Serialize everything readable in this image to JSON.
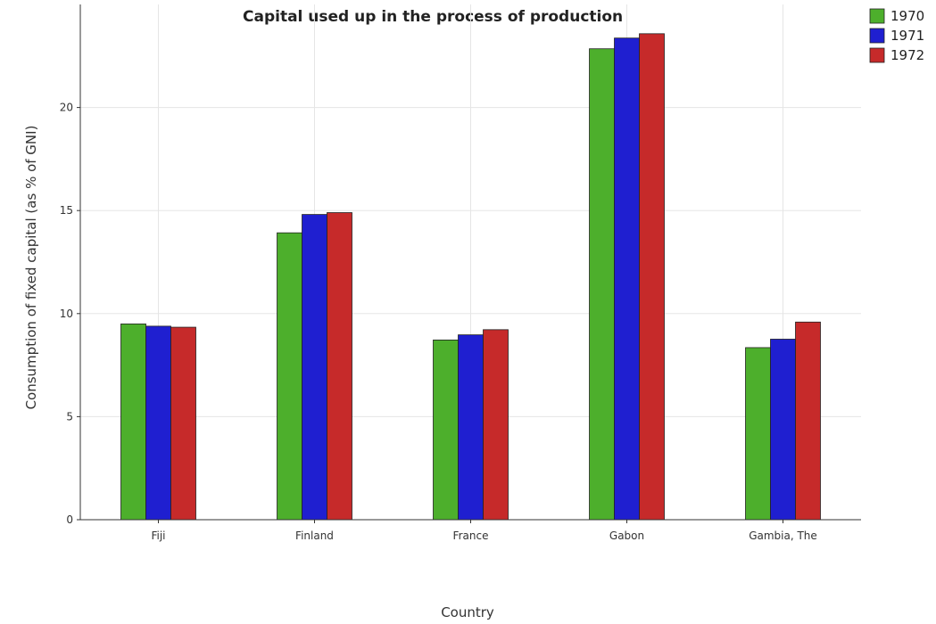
{
  "chart_data": {
    "type": "bar",
    "title": "Capital used up in the process of production",
    "xlabel": "Country",
    "ylabel": "Consumption of fixed capital (as % of GNI)",
    "categories": [
      "Fiji",
      "Finland",
      "France",
      "Gabon",
      "Gambia, The"
    ],
    "series": [
      {
        "name": "1970",
        "color": "#4daf2c",
        "values": [
          9.5,
          13.92,
          8.72,
          22.85,
          8.35
        ]
      },
      {
        "name": "1971",
        "color": "#1f1fd0",
        "values": [
          9.39,
          14.81,
          8.97,
          23.37,
          8.76
        ]
      },
      {
        "name": "1972",
        "color": "#c62a2a",
        "values": [
          9.34,
          14.9,
          9.22,
          23.58,
          9.59
        ]
      }
    ],
    "ylim": [
      0,
      25
    ],
    "yticks": [
      0,
      5,
      10,
      15,
      20
    ],
    "grid": true,
    "legend": "top-right"
  }
}
